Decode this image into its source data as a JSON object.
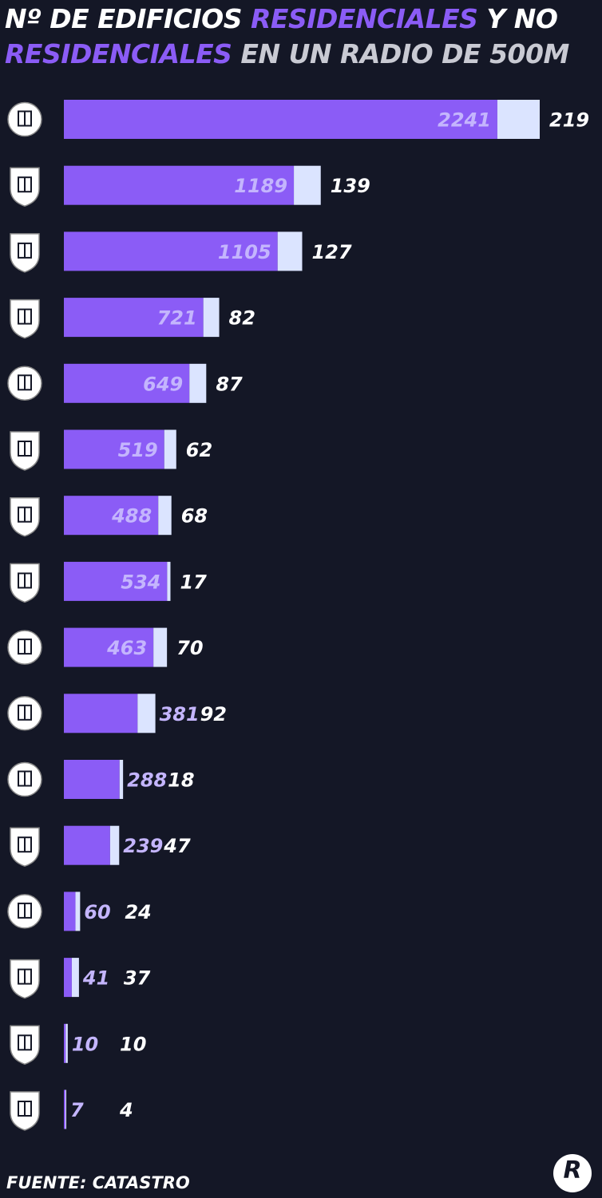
{
  "title": {
    "part1": "Nº DE EDIFICIOS ",
    "part2": "RESIDENCIALES",
    "part3": " Y ",
    "part4": "NO RESIDENCIALES",
    "part5": " EN UN RADIO DE 500M"
  },
  "footer": "FUENTE: CATASTRO",
  "brand_logo_text": "R",
  "colors": {
    "background": "#141726",
    "residential": "#8b5cf6",
    "non_residential": "#dbe4ff",
    "residential_label": "#c4b5fd",
    "crest_fill": "#ffffff",
    "crest_stroke": "#141726"
  },
  "chart_data": {
    "type": "bar",
    "orientation": "horizontal",
    "stacked": true,
    "categories": [
      "villarreal-crest",
      "rayo-vallecano-crest",
      "sevilla-crest",
      "real-betis-crest",
      "barcelona-crest",
      "celta-crest",
      "espanyol-crest",
      "getafe-crest",
      "valencia-crest",
      "real-madrid-crest",
      "girona-crest",
      "mallorca-crest",
      "las-palmas-crest",
      "leganes-crest",
      "valladolid-crest",
      "atletico-madrid-crest"
    ],
    "series": [
      {
        "name": "RESIDENCIALES",
        "values": [
          2241,
          1189,
          1105,
          721,
          649,
          519,
          488,
          534,
          463,
          381,
          288,
          239,
          60,
          41,
          10,
          7
        ]
      },
      {
        "name": "NO RESIDENCIALES",
        "values": [
          219,
          139,
          127,
          82,
          87,
          62,
          68,
          17,
          70,
          92,
          18,
          47,
          24,
          37,
          10,
          4
        ]
      }
    ],
    "residential_labels": [
      "2241",
      "1189",
      "1105",
      "721",
      "649",
      "519",
      "488",
      "534",
      "463",
      "381",
      "288",
      "239",
      "60",
      "41",
      "10",
      "7"
    ],
    "non_residential_labels": [
      "219",
      "139",
      "127",
      "82",
      "87",
      "62",
      "68",
      "17",
      "70",
      "92",
      "18",
      "47",
      "24",
      "37",
      "10",
      "4"
    ],
    "xlim": [
      0,
      2460
    ],
    "grid": false,
    "legend": "none"
  }
}
